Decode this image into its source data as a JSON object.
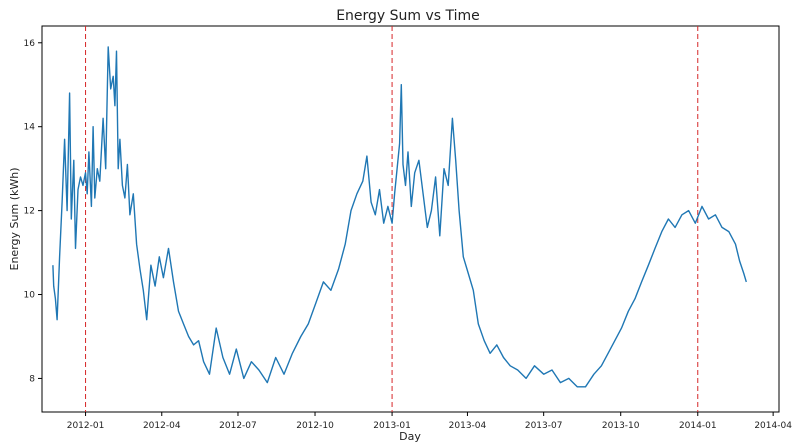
{
  "chart_data": {
    "type": "line",
    "title": "Energy Sum vs Time",
    "xlabel": "Day",
    "ylabel": "Energy Sum (kWh)",
    "xlim": [
      "2011-11-10",
      "2014-04-08"
    ],
    "ylim": [
      7.2,
      16.4
    ],
    "x_ticks": [
      "2012-01",
      "2012-04",
      "2012-07",
      "2012-10",
      "2013-01",
      "2013-04",
      "2013-07",
      "2013-10",
      "2014-01",
      "2014-04"
    ],
    "y_ticks": [
      8,
      10,
      12,
      14,
      16
    ],
    "grid": false,
    "vertical_markers": [
      "2012-01-01",
      "2013-01-01",
      "2014-01-01"
    ],
    "colors": {
      "series": "#1f77b4",
      "markers": "#d62728"
    },
    "series": [
      {
        "x": [
          "2011-11-23",
          "2011-11-24",
          "2011-11-26",
          "2011-11-28",
          "2011-12-01",
          "2011-12-04",
          "2011-12-07",
          "2011-12-10",
          "2011-12-13",
          "2011-12-15",
          "2011-12-18",
          "2011-12-20",
          "2011-12-23",
          "2011-12-26",
          "2011-12-29",
          "2012-01-01",
          "2012-01-03",
          "2012-01-05",
          "2012-01-08",
          "2012-01-10",
          "2012-01-12",
          "2012-01-15",
          "2012-01-18",
          "2012-01-22",
          "2012-01-25",
          "2012-01-28",
          "2012-01-31",
          "2012-02-03",
          "2012-02-05",
          "2012-02-07",
          "2012-02-09",
          "2012-02-11",
          "2012-02-14",
          "2012-02-17",
          "2012-02-20",
          "2012-02-23",
          "2012-02-27",
          "2012-03-02",
          "2012-03-06",
          "2012-03-10",
          "2012-03-14",
          "2012-03-19",
          "2012-03-24",
          "2012-03-29",
          "2012-04-03",
          "2012-04-09",
          "2012-04-15",
          "2012-04-21",
          "2012-04-27",
          "2012-05-03",
          "2012-05-09",
          "2012-05-15",
          "2012-05-21",
          "2012-05-28",
          "2012-06-05",
          "2012-06-13",
          "2012-06-21",
          "2012-06-29",
          "2012-07-08",
          "2012-07-17",
          "2012-07-26",
          "2012-08-05",
          "2012-08-15",
          "2012-08-25",
          "2012-09-04",
          "2012-09-14",
          "2012-09-23",
          "2012-10-02",
          "2012-10-11",
          "2012-10-20",
          "2012-10-29",
          "2012-11-06",
          "2012-11-13",
          "2012-11-20",
          "2012-11-27",
          "2012-12-02",
          "2012-12-07",
          "2012-12-12",
          "2012-12-17",
          "2012-12-22",
          "2012-12-27",
          "2013-01-01",
          "2013-01-04",
          "2013-01-07",
          "2013-01-10",
          "2013-01-12",
          "2013-01-14",
          "2013-01-17",
          "2013-01-20",
          "2013-01-24",
          "2013-01-28",
          "2013-02-02",
          "2013-02-07",
          "2013-02-12",
          "2013-02-17",
          "2013-02-22",
          "2013-02-27",
          "2013-03-04",
          "2013-03-09",
          "2013-03-14",
          "2013-03-18",
          "2013-03-22",
          "2013-03-27",
          "2013-04-02",
          "2013-04-08",
          "2013-04-14",
          "2013-04-21",
          "2013-04-28",
          "2013-05-06",
          "2013-05-14",
          "2013-05-22",
          "2013-05-31",
          "2013-06-10",
          "2013-06-20",
          "2013-07-01",
          "2013-07-11",
          "2013-07-21",
          "2013-07-31",
          "2013-08-10",
          "2013-08-20",
          "2013-08-30",
          "2013-09-08",
          "2013-09-16",
          "2013-09-24",
          "2013-10-02",
          "2013-10-10",
          "2013-10-18",
          "2013-10-26",
          "2013-11-03",
          "2013-11-11",
          "2013-11-19",
          "2013-11-27",
          "2013-12-05",
          "2013-12-13",
          "2013-12-21",
          "2013-12-29",
          "2014-01-06",
          "2014-01-14",
          "2014-01-22",
          "2014-01-30",
          "2014-02-07",
          "2014-02-15",
          "2014-02-20",
          "2014-02-25",
          "2014-02-28"
        ],
        "y": [
          10.7,
          10.2,
          9.9,
          9.4,
          10.9,
          12.2,
          13.7,
          12.0,
          14.8,
          11.8,
          13.2,
          11.1,
          12.5,
          12.8,
          12.6,
          12.9,
          12.4,
          13.4,
          12.1,
          14.0,
          12.3,
          13.0,
          12.7,
          14.2,
          13.0,
          15.9,
          14.9,
          15.2,
          14.5,
          15.8,
          13.0,
          13.7,
          12.6,
          12.3,
          13.1,
          11.9,
          12.4,
          11.2,
          10.6,
          10.1,
          9.4,
          10.7,
          10.2,
          10.9,
          10.4,
          11.1,
          10.3,
          9.6,
          9.3,
          9.0,
          8.8,
          8.9,
          8.4,
          8.1,
          9.2,
          8.5,
          8.1,
          8.7,
          8.0,
          8.4,
          8.2,
          7.9,
          8.5,
          8.1,
          8.6,
          9.0,
          9.3,
          9.8,
          10.3,
          10.1,
          10.6,
          11.2,
          12.0,
          12.4,
          12.7,
          13.3,
          12.2,
          11.9,
          12.5,
          11.7,
          12.1,
          11.7,
          12.4,
          13.0,
          13.6,
          15.0,
          13.1,
          12.6,
          13.4,
          12.1,
          12.9,
          13.2,
          12.4,
          11.6,
          12.0,
          12.8,
          11.4,
          13.0,
          12.6,
          14.2,
          13.2,
          12.0,
          10.9,
          10.5,
          10.1,
          9.3,
          8.9,
          8.6,
          8.8,
          8.5,
          8.3,
          8.2,
          8.0,
          8.3,
          8.1,
          8.2,
          7.9,
          8.0,
          7.8,
          7.8,
          8.1,
          8.3,
          8.6,
          8.9,
          9.2,
          9.6,
          9.9,
          10.3,
          10.7,
          11.1,
          11.5,
          11.8,
          11.6,
          11.9,
          12.0,
          11.7,
          12.1,
          11.8,
          11.9,
          11.6,
          11.5,
          11.2,
          10.8,
          10.5,
          10.3
        ]
      }
    ]
  }
}
